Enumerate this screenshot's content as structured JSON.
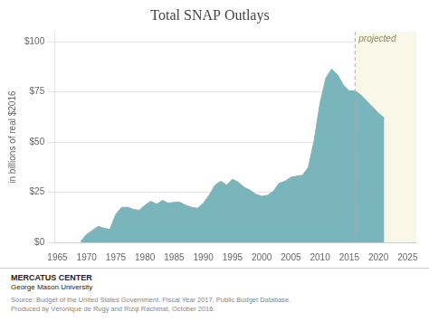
{
  "chart_data": {
    "type": "area",
    "title": "Total SNAP Outlays",
    "y_label": "in billions of real $2016",
    "x": [
      1969,
      1970,
      1971,
      1972,
      1973,
      1974,
      1975,
      1976,
      1977,
      1978,
      1979,
      1980,
      1981,
      1982,
      1983,
      1984,
      1985,
      1986,
      1987,
      1988,
      1989,
      1990,
      1991,
      1992,
      1993,
      1994,
      1995,
      1996,
      1997,
      1998,
      1999,
      2000,
      2001,
      2002,
      2003,
      2004,
      2005,
      2006,
      2007,
      2008,
      2009,
      2010,
      2011,
      2012,
      2013,
      2014,
      2015,
      2016,
      2017,
      2018,
      2019,
      2020,
      2021
    ],
    "values": [
      0.5,
      4.0,
      6.0,
      8.0,
      7.0,
      6.5,
      14.0,
      17.5,
      17.5,
      16.5,
      16.0,
      18.5,
      20.5,
      19.0,
      21.0,
      19.5,
      20.0,
      20.0,
      18.5,
      17.5,
      17.0,
      19.5,
      23.5,
      28.5,
      30.5,
      28.5,
      31.5,
      30.0,
      27.5,
      26.0,
      24.0,
      23.0,
      23.5,
      25.5,
      29.5,
      30.5,
      32.5,
      33.0,
      33.5,
      37.5,
      51.0,
      69.5,
      82.0,
      86.5,
      83.5,
      78.5,
      75.5,
      75.5,
      73.5,
      70.5,
      67.5,
      64.5,
      62.0
    ],
    "color": "#7ab5bb",
    "xlim": [
      1964.5,
      2026.5
    ],
    "xticks": [
      1965,
      1970,
      1975,
      1980,
      1985,
      1990,
      1995,
      2000,
      2005,
      2010,
      2015,
      2020,
      2025
    ],
    "ylim": [
      0,
      105
    ],
    "yticks": [
      {
        "value": 0,
        "label": "$0"
      },
      {
        "value": 25,
        "label": "$25"
      },
      {
        "value": 50,
        "label": "$50"
      },
      {
        "value": 75,
        "label": "$75"
      },
      {
        "value": 100,
        "label": "$100"
      }
    ],
    "grid": "y",
    "annotations": [
      {
        "text": "projected",
        "x": 2016,
        "color": "#f8f7e8",
        "line_style": "dashed"
      }
    ],
    "footer": [
      "MERCATUS CENTER",
      "George Mason University"
    ],
    "source": "Source: Budget of the United States Government, Fiscal Year 2017, Public Budget Database.\nProduced by Véronique de Rugy and Rizqi Rachmat, October 2016."
  }
}
